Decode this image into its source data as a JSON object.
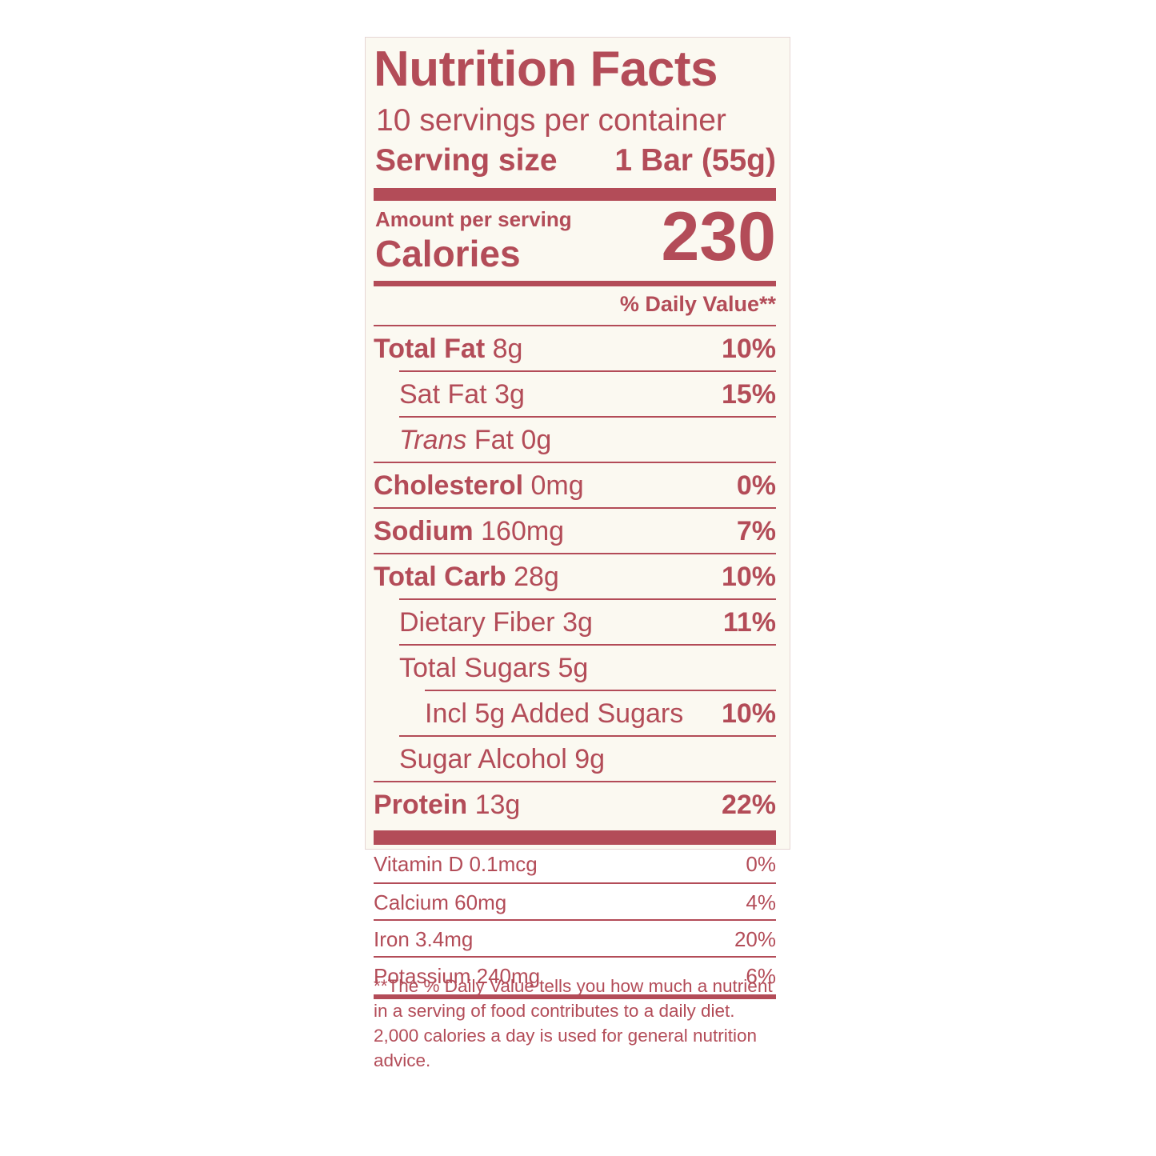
{
  "title": "Nutrition Facts",
  "servings": "10 servings per container",
  "serving_size": {
    "label": "Serving size",
    "value": "1 Bar (55g)"
  },
  "calories": {
    "amount_label": "Amount per serving",
    "label": "Calories",
    "value": "230"
  },
  "daily_value_header": "% Daily Value**",
  "nutrients": [
    {
      "name": "Total Fat",
      "amount": "8g",
      "dv": "10%"
    },
    {
      "name": "Sat Fat",
      "amount": "3g",
      "dv": "15%"
    },
    {
      "name_italic": "Trans",
      "name": "Fat",
      "amount": "0g"
    },
    {
      "name": "Cholesterol",
      "amount": "0mg",
      "dv": "0%"
    },
    {
      "name": "Sodium",
      "amount": "160mg",
      "dv": "7%"
    },
    {
      "name": "Total Carb",
      "amount": "28g",
      "dv": "10%"
    },
    {
      "name": "Dietary Fiber",
      "amount": "3g",
      "dv": "11%"
    },
    {
      "name": "Total Sugars",
      "amount": "5g"
    },
    {
      "name": "Incl 5g Added Sugars",
      "dv": "10%"
    },
    {
      "name": "Sugar Alcohol",
      "amount": "9g"
    },
    {
      "name": "Protein",
      "amount": "13g",
      "dv": "22%"
    }
  ],
  "vitamins": [
    {
      "name": "Vitamin D",
      "amount": "0.1mcg",
      "dv": "0%"
    },
    {
      "name": "Calcium",
      "amount": "60mg",
      "dv": "4%"
    },
    {
      "name": "Iron",
      "amount": "3.4mg",
      "dv": "20%"
    },
    {
      "name": "Potassium",
      "amount": "240mg",
      "dv": "6%"
    }
  ],
  "footnote": [
    "**The % Daily Value tells you how much a nutrient",
    "in a serving of food contributes to a daily diet.",
    "2,000 calories a day is used for general nutrition",
    "advice."
  ]
}
